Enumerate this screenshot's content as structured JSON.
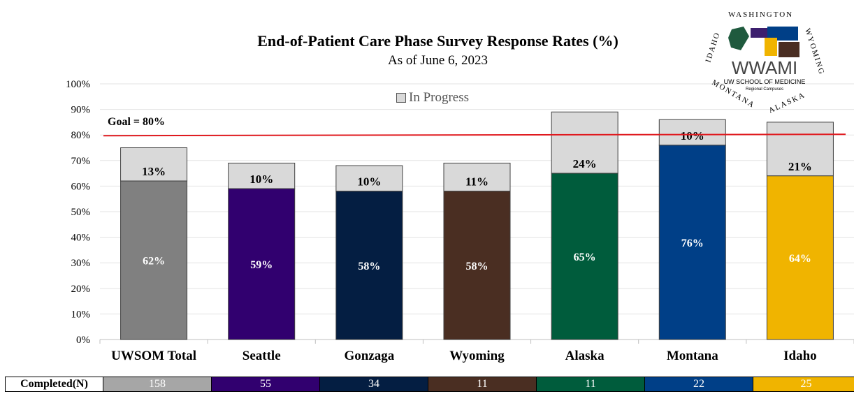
{
  "chart_data": {
    "type": "bar",
    "stacked": true,
    "title": "End-of-Patient Care Phase Survey Response Rates (%)",
    "subtitle": "As of June 6, 2023",
    "categories": [
      "UWSOM Total",
      "Seattle",
      "Gonzaga",
      "Wyoming",
      "Alaska",
      "Montana",
      "Idaho"
    ],
    "series": [
      {
        "name": "",
        "values": [
          62,
          59,
          58,
          58,
          65,
          76,
          64
        ],
        "labels": [
          "62%",
          "59%",
          "58%",
          "58%",
          "65%",
          "76%",
          "64%"
        ],
        "colors": [
          "#808080",
          "#31006f",
          "#041e42",
          "#4a2e22",
          "#005c3c",
          "#003f87",
          "#f0b400"
        ]
      },
      {
        "name": "In Progress",
        "values": [
          13,
          10,
          10,
          11,
          24,
          10,
          21
        ],
        "labels": [
          "13%",
          "10%",
          "10%",
          "11%",
          "24%",
          "10%",
          "21%"
        ],
        "color": "#d9d9d9"
      }
    ],
    "yticks": [
      "0%",
      "10%",
      "20%",
      "30%",
      "40%",
      "50%",
      "60%",
      "70%",
      "80%",
      "90%",
      "100%"
    ],
    "ylim": [
      0,
      100
    ],
    "grid": true,
    "legend_position": "top-center",
    "goal": {
      "value": 80,
      "label": "Goal = 80%",
      "color": "#e0191e"
    }
  },
  "completed_table": {
    "header": "Completed(N)",
    "values": [
      "158",
      "55",
      "34",
      "11",
      "11",
      "22",
      "25"
    ],
    "colors": [
      "#a6a6a6",
      "#31006f",
      "#041e42",
      "#4a2e22",
      "#005c3c",
      "#003f87",
      "#f0b400"
    ]
  },
  "logo": {
    "name": "WWAMI",
    "line1": "UW SCHOOL OF MEDICINE",
    "line2": "Regional Campuses",
    "states": [
      "WASHINGTON",
      "WYOMING",
      "ALASKA",
      "MONTANA",
      "IDAHO"
    ]
  }
}
